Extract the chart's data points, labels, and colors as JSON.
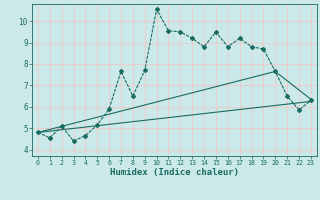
{
  "title": "",
  "xlabel": "Humidex (Indice chaleur)",
  "ylabel": "",
  "background_color": "#cce9ea",
  "grid_color": "#f0c8c8",
  "line_color": "#1a6b60",
  "xlim": [
    -0.5,
    23.5
  ],
  "ylim": [
    3.7,
    10.8
  ],
  "yticks": [
    4,
    5,
    6,
    7,
    8,
    9,
    10
  ],
  "xticks": [
    0,
    1,
    2,
    3,
    4,
    5,
    6,
    7,
    8,
    9,
    10,
    11,
    12,
    13,
    14,
    15,
    16,
    17,
    18,
    19,
    20,
    21,
    22,
    23
  ],
  "series1_x": [
    0,
    1,
    2,
    3,
    4,
    5,
    6,
    7,
    8,
    9,
    10,
    11,
    12,
    13,
    14,
    15,
    16,
    17,
    18,
    19,
    20,
    21,
    22,
    23
  ],
  "series1_y": [
    4.8,
    4.55,
    5.1,
    4.4,
    4.65,
    5.15,
    5.9,
    7.65,
    6.5,
    7.7,
    10.55,
    9.55,
    9.5,
    9.2,
    8.8,
    9.5,
    8.8,
    9.2,
    8.8,
    8.7,
    7.65,
    6.5,
    5.85,
    6.3
  ],
  "series2_x": [
    0,
    20,
    23
  ],
  "series2_y": [
    4.8,
    7.65,
    6.35
  ],
  "series3_x": [
    0,
    23
  ],
  "series3_y": [
    4.8,
    6.25
  ]
}
